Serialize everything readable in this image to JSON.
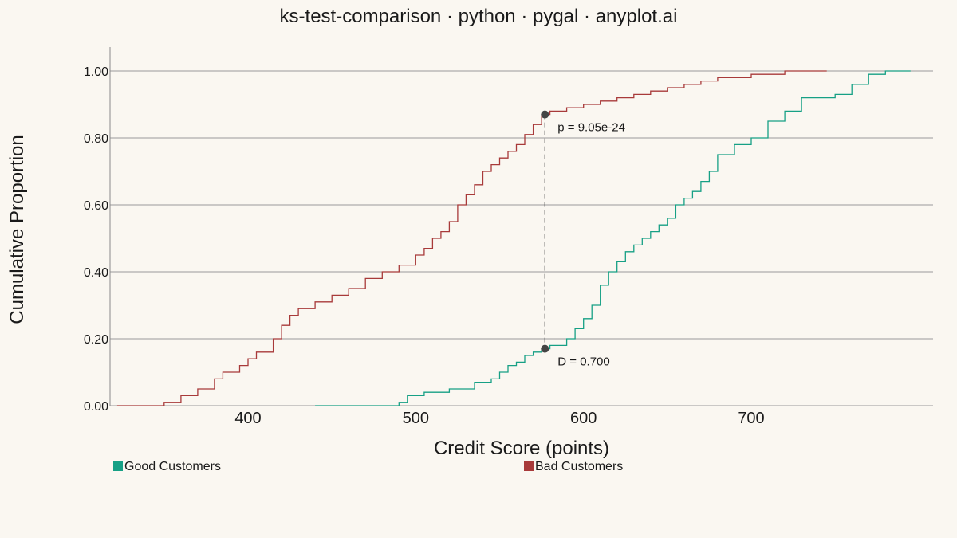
{
  "chart_data": {
    "type": "line",
    "title": "ks-test-comparison · python · pygal · anyplot.ai",
    "xlabel": "Credit Score (points)",
    "ylabel": "Cumulative Proportion",
    "xlim": [
      320,
      810
    ],
    "ylim": [
      0,
      1
    ],
    "x_ticks": [
      400,
      500,
      600,
      700
    ],
    "y_ticks": [
      0.0,
      0.2,
      0.4,
      0.6,
      0.8,
      1.0
    ],
    "y_tick_labels": [
      "0.00",
      "0.20",
      "0.40",
      "0.60",
      "0.80",
      "1.00"
    ],
    "grid": "horizontal",
    "legend_position": "bottom",
    "series": [
      {
        "name": "Good Customers",
        "color": "#16A085",
        "x": [
          440,
          490,
          495,
          505,
          520,
          535,
          545,
          550,
          555,
          560,
          565,
          570,
          575,
          580,
          590,
          595,
          600,
          605,
          610,
          615,
          620,
          625,
          630,
          635,
          640,
          645,
          650,
          655,
          660,
          665,
          670,
          675,
          680,
          690,
          700,
          710,
          720,
          730,
          740,
          750,
          760,
          770,
          780,
          795
        ],
        "y": [
          0.0,
          0.01,
          0.03,
          0.04,
          0.05,
          0.07,
          0.08,
          0.1,
          0.12,
          0.13,
          0.15,
          0.16,
          0.17,
          0.18,
          0.2,
          0.23,
          0.26,
          0.3,
          0.36,
          0.4,
          0.43,
          0.46,
          0.48,
          0.5,
          0.52,
          0.54,
          0.56,
          0.6,
          0.62,
          0.64,
          0.67,
          0.7,
          0.75,
          0.78,
          0.8,
          0.85,
          0.88,
          0.92,
          0.92,
          0.93,
          0.96,
          0.99,
          1.0,
          1.0
        ]
      },
      {
        "name": "Bad Customers",
        "color": "#A83A3A",
        "x": [
          322,
          350,
          360,
          370,
          380,
          385,
          395,
          400,
          405,
          415,
          420,
          425,
          430,
          440,
          450,
          460,
          470,
          480,
          490,
          500,
          505,
          510,
          515,
          520,
          525,
          530,
          535,
          540,
          545,
          550,
          555,
          560,
          565,
          570,
          575,
          580,
          590,
          600,
          610,
          620,
          630,
          640,
          650,
          660,
          670,
          680,
          700,
          720,
          745
        ],
        "y": [
          0.0,
          0.01,
          0.03,
          0.05,
          0.08,
          0.1,
          0.12,
          0.14,
          0.16,
          0.2,
          0.24,
          0.27,
          0.29,
          0.31,
          0.33,
          0.35,
          0.38,
          0.4,
          0.42,
          0.45,
          0.47,
          0.5,
          0.52,
          0.55,
          0.6,
          0.63,
          0.66,
          0.7,
          0.72,
          0.74,
          0.76,
          0.78,
          0.81,
          0.84,
          0.87,
          0.88,
          0.89,
          0.9,
          0.91,
          0.92,
          0.93,
          0.94,
          0.95,
          0.96,
          0.97,
          0.98,
          0.99,
          1.0,
          1.0
        ]
      }
    ],
    "annotations": {
      "d_x": 577,
      "d_y_low": 0.17,
      "d_y_high": 0.87,
      "d_label": "D = 0.700",
      "p_label": "p = 9.05e-24"
    }
  }
}
